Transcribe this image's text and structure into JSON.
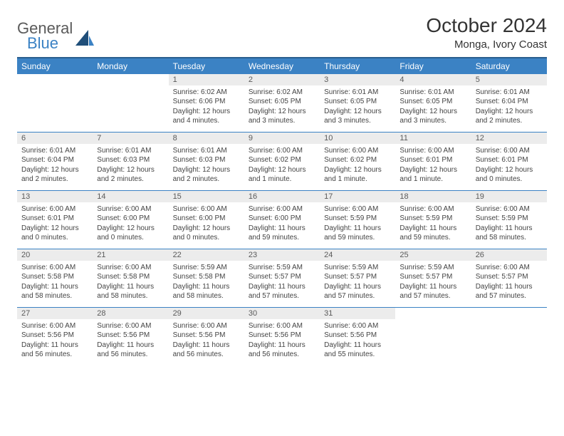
{
  "logo": {
    "general": "General",
    "blue": "Blue"
  },
  "title": "October 2024",
  "location": "Monga, Ivory Coast",
  "colors": {
    "header_bg": "#3b82c4",
    "header_border": "#2b5f8f",
    "daynum_bg": "#ececec",
    "text": "#444444"
  },
  "day_headers": [
    "Sunday",
    "Monday",
    "Tuesday",
    "Wednesday",
    "Thursday",
    "Friday",
    "Saturday"
  ],
  "weeks": [
    [
      null,
      null,
      {
        "n": "1",
        "sr": "Sunrise: 6:02 AM",
        "ss": "Sunset: 6:06 PM",
        "dl": "Daylight: 12 hours and 4 minutes."
      },
      {
        "n": "2",
        "sr": "Sunrise: 6:02 AM",
        "ss": "Sunset: 6:05 PM",
        "dl": "Daylight: 12 hours and 3 minutes."
      },
      {
        "n": "3",
        "sr": "Sunrise: 6:01 AM",
        "ss": "Sunset: 6:05 PM",
        "dl": "Daylight: 12 hours and 3 minutes."
      },
      {
        "n": "4",
        "sr": "Sunrise: 6:01 AM",
        "ss": "Sunset: 6:05 PM",
        "dl": "Daylight: 12 hours and 3 minutes."
      },
      {
        "n": "5",
        "sr": "Sunrise: 6:01 AM",
        "ss": "Sunset: 6:04 PM",
        "dl": "Daylight: 12 hours and 2 minutes."
      }
    ],
    [
      {
        "n": "6",
        "sr": "Sunrise: 6:01 AM",
        "ss": "Sunset: 6:04 PM",
        "dl": "Daylight: 12 hours and 2 minutes."
      },
      {
        "n": "7",
        "sr": "Sunrise: 6:01 AM",
        "ss": "Sunset: 6:03 PM",
        "dl": "Daylight: 12 hours and 2 minutes."
      },
      {
        "n": "8",
        "sr": "Sunrise: 6:01 AM",
        "ss": "Sunset: 6:03 PM",
        "dl": "Daylight: 12 hours and 2 minutes."
      },
      {
        "n": "9",
        "sr": "Sunrise: 6:00 AM",
        "ss": "Sunset: 6:02 PM",
        "dl": "Daylight: 12 hours and 1 minute."
      },
      {
        "n": "10",
        "sr": "Sunrise: 6:00 AM",
        "ss": "Sunset: 6:02 PM",
        "dl": "Daylight: 12 hours and 1 minute."
      },
      {
        "n": "11",
        "sr": "Sunrise: 6:00 AM",
        "ss": "Sunset: 6:01 PM",
        "dl": "Daylight: 12 hours and 1 minute."
      },
      {
        "n": "12",
        "sr": "Sunrise: 6:00 AM",
        "ss": "Sunset: 6:01 PM",
        "dl": "Daylight: 12 hours and 0 minutes."
      }
    ],
    [
      {
        "n": "13",
        "sr": "Sunrise: 6:00 AM",
        "ss": "Sunset: 6:01 PM",
        "dl": "Daylight: 12 hours and 0 minutes."
      },
      {
        "n": "14",
        "sr": "Sunrise: 6:00 AM",
        "ss": "Sunset: 6:00 PM",
        "dl": "Daylight: 12 hours and 0 minutes."
      },
      {
        "n": "15",
        "sr": "Sunrise: 6:00 AM",
        "ss": "Sunset: 6:00 PM",
        "dl": "Daylight: 12 hours and 0 minutes."
      },
      {
        "n": "16",
        "sr": "Sunrise: 6:00 AM",
        "ss": "Sunset: 6:00 PM",
        "dl": "Daylight: 11 hours and 59 minutes."
      },
      {
        "n": "17",
        "sr": "Sunrise: 6:00 AM",
        "ss": "Sunset: 5:59 PM",
        "dl": "Daylight: 11 hours and 59 minutes."
      },
      {
        "n": "18",
        "sr": "Sunrise: 6:00 AM",
        "ss": "Sunset: 5:59 PM",
        "dl": "Daylight: 11 hours and 59 minutes."
      },
      {
        "n": "19",
        "sr": "Sunrise: 6:00 AM",
        "ss": "Sunset: 5:59 PM",
        "dl": "Daylight: 11 hours and 58 minutes."
      }
    ],
    [
      {
        "n": "20",
        "sr": "Sunrise: 6:00 AM",
        "ss": "Sunset: 5:58 PM",
        "dl": "Daylight: 11 hours and 58 minutes."
      },
      {
        "n": "21",
        "sr": "Sunrise: 6:00 AM",
        "ss": "Sunset: 5:58 PM",
        "dl": "Daylight: 11 hours and 58 minutes."
      },
      {
        "n": "22",
        "sr": "Sunrise: 5:59 AM",
        "ss": "Sunset: 5:58 PM",
        "dl": "Daylight: 11 hours and 58 minutes."
      },
      {
        "n": "23",
        "sr": "Sunrise: 5:59 AM",
        "ss": "Sunset: 5:57 PM",
        "dl": "Daylight: 11 hours and 57 minutes."
      },
      {
        "n": "24",
        "sr": "Sunrise: 5:59 AM",
        "ss": "Sunset: 5:57 PM",
        "dl": "Daylight: 11 hours and 57 minutes."
      },
      {
        "n": "25",
        "sr": "Sunrise: 5:59 AM",
        "ss": "Sunset: 5:57 PM",
        "dl": "Daylight: 11 hours and 57 minutes."
      },
      {
        "n": "26",
        "sr": "Sunrise: 6:00 AM",
        "ss": "Sunset: 5:57 PM",
        "dl": "Daylight: 11 hours and 57 minutes."
      }
    ],
    [
      {
        "n": "27",
        "sr": "Sunrise: 6:00 AM",
        "ss": "Sunset: 5:56 PM",
        "dl": "Daylight: 11 hours and 56 minutes."
      },
      {
        "n": "28",
        "sr": "Sunrise: 6:00 AM",
        "ss": "Sunset: 5:56 PM",
        "dl": "Daylight: 11 hours and 56 minutes."
      },
      {
        "n": "29",
        "sr": "Sunrise: 6:00 AM",
        "ss": "Sunset: 5:56 PM",
        "dl": "Daylight: 11 hours and 56 minutes."
      },
      {
        "n": "30",
        "sr": "Sunrise: 6:00 AM",
        "ss": "Sunset: 5:56 PM",
        "dl": "Daylight: 11 hours and 56 minutes."
      },
      {
        "n": "31",
        "sr": "Sunrise: 6:00 AM",
        "ss": "Sunset: 5:56 PM",
        "dl": "Daylight: 11 hours and 55 minutes."
      },
      null,
      null
    ]
  ]
}
